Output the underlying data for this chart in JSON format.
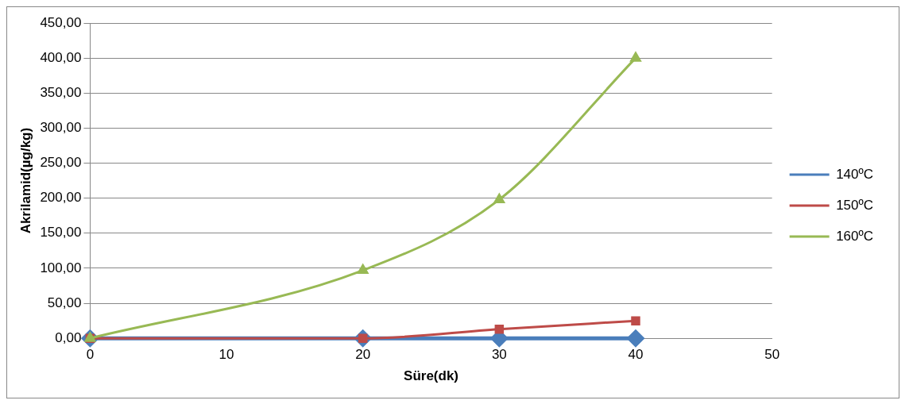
{
  "chart_data": {
    "type": "line",
    "xlabel": "Süre(dk)",
    "ylabel": "Akrilamid(µg/kg)",
    "x": [
      0,
      20,
      30,
      40
    ],
    "series": [
      {
        "name": "140ºC",
        "color": "#4a7ebb",
        "values": [
          0,
          0,
          0,
          0
        ],
        "marker": "diamond"
      },
      {
        "name": "150ºC",
        "color": "#be4b48",
        "values": [
          0,
          0,
          13,
          25
        ],
        "marker": "square"
      },
      {
        "name": "160ºC",
        "color": "#98b954",
        "values": [
          0,
          97,
          198,
          400
        ],
        "marker": "triangle"
      }
    ],
    "xlim": [
      0,
      50
    ],
    "xticks": [
      0,
      10,
      20,
      30,
      40,
      50
    ],
    "ylim": [
      0,
      450
    ],
    "yticks": [
      {
        "value": 0,
        "label": "0,00"
      },
      {
        "value": 50,
        "label": "50,00"
      },
      {
        "value": 100,
        "label": "100,00"
      },
      {
        "value": 150,
        "label": "150,00"
      },
      {
        "value": 200,
        "label": "200,00"
      },
      {
        "value": 250,
        "label": "250,00"
      },
      {
        "value": 300,
        "label": "300,00"
      },
      {
        "value": 350,
        "label": "350,00"
      },
      {
        "value": 400,
        "label": "400,00"
      },
      {
        "value": 450,
        "label": "450,00"
      }
    ],
    "grid": "y",
    "legend": "right"
  }
}
